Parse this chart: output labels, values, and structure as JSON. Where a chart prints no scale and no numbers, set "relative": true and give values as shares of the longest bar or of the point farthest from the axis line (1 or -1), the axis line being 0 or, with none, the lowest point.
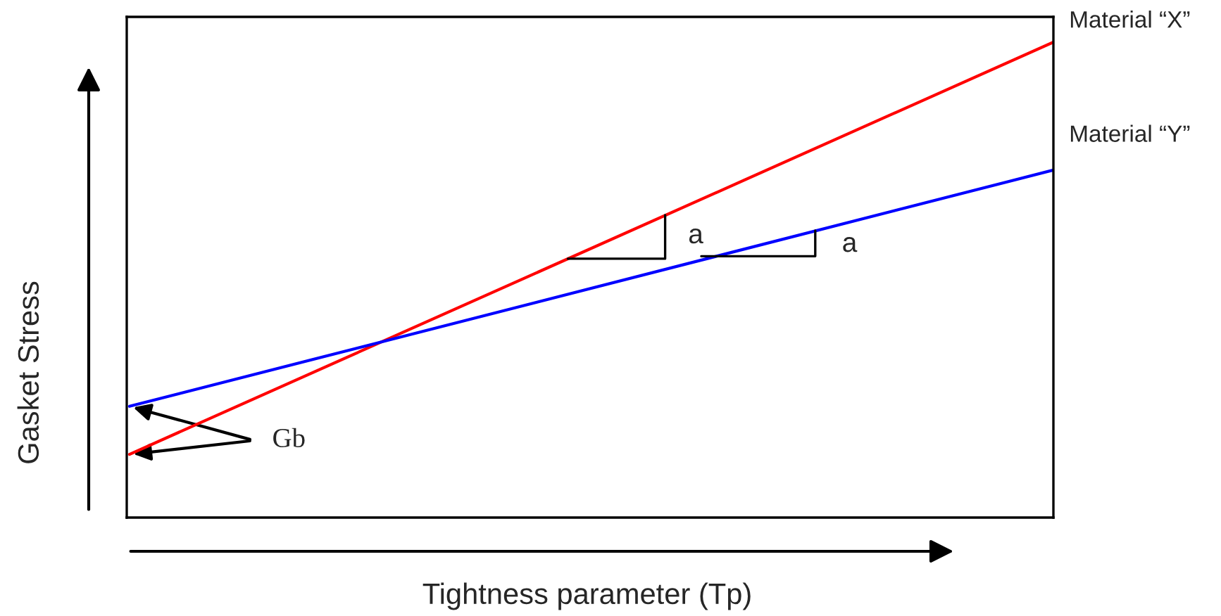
{
  "chart_data": {
    "type": "line",
    "relative": true,
    "xlabel": "Tightness parameter (Tp)",
    "ylabel": "Gasket Stress",
    "categories": [
      null,
      null
    ],
    "series": [
      {
        "name": "Material “X”",
        "color": "#ff0000",
        "values": [
          0.133,
          1
        ]
      },
      {
        "name": "Material “Y”",
        "color": "#0000ff",
        "values": [
          0.234,
          0.731
        ]
      }
    ],
    "annotations": [
      "a",
      "a",
      "Gb"
    ],
    "legend": false,
    "line_style": "solid"
  }
}
